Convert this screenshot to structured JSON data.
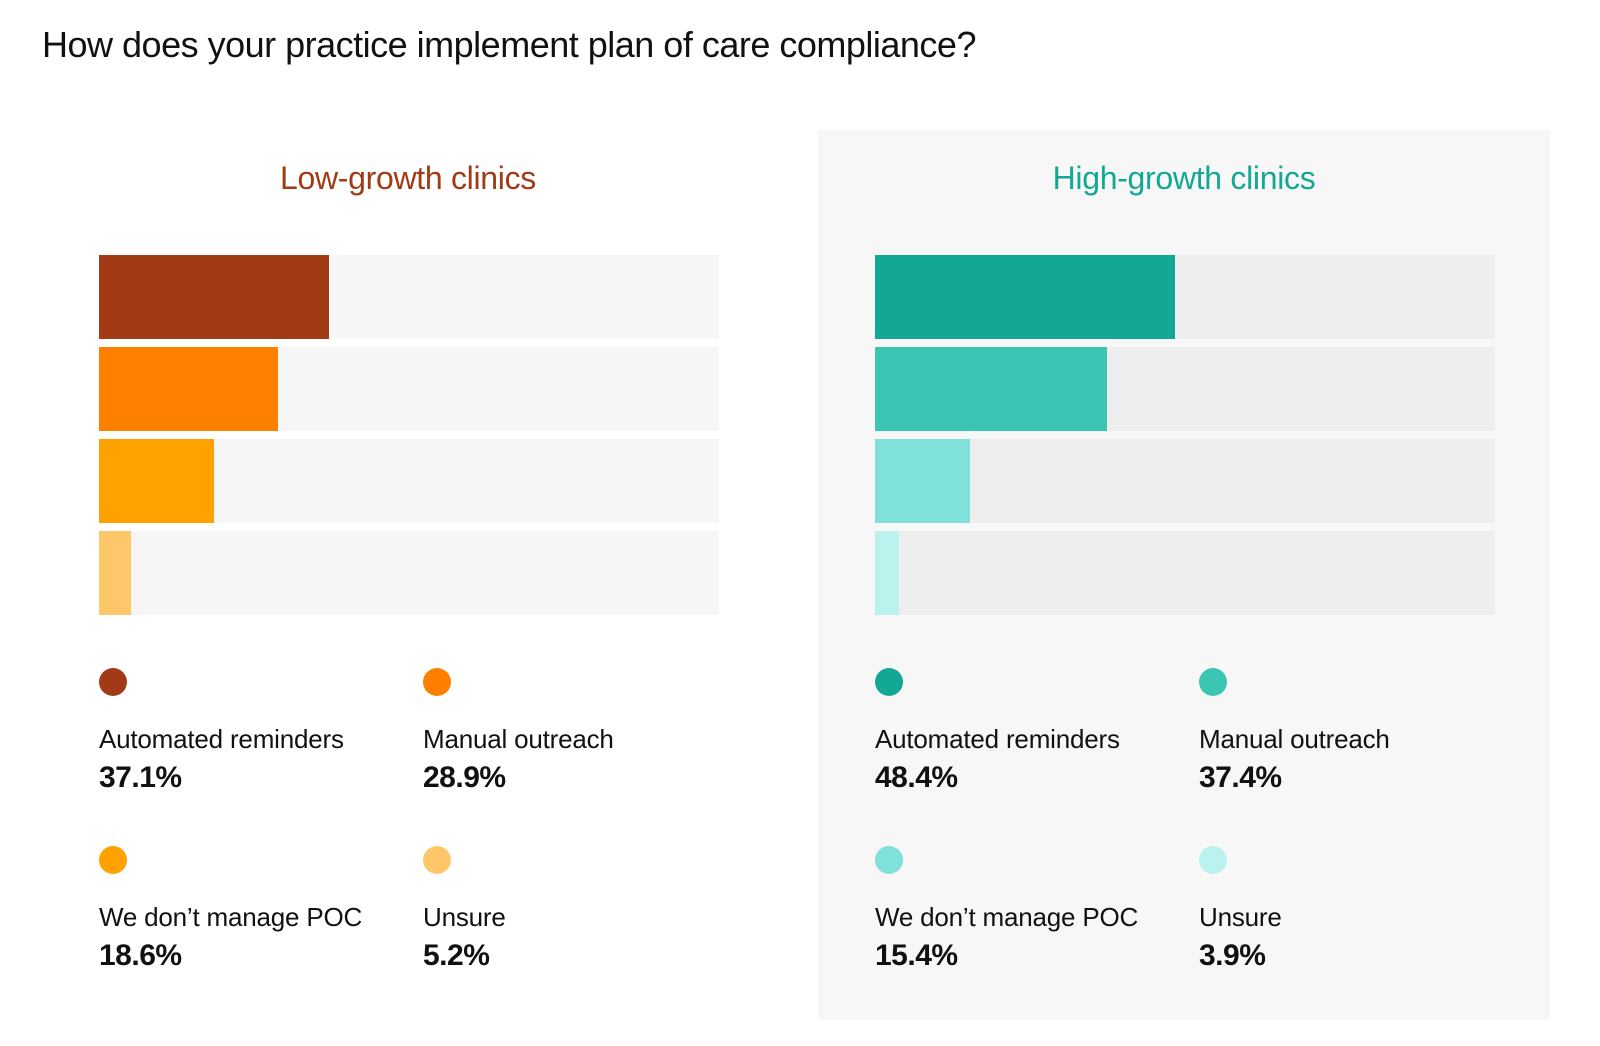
{
  "chart_data": {
    "type": "bar",
    "title": "How does your practice implement plan of care compliance?",
    "unit": "%",
    "xlim": [
      0,
      100
    ],
    "categories": [
      "Automated reminders",
      "Manual outreach",
      "We don’t manage POC",
      "Unsure"
    ],
    "panels": [
      {
        "name": "Low-growth clinics",
        "title_color": "#a23a16",
        "colors": [
          "#a23a16",
          "#ff7f00",
          "#ffa200",
          "#ffc76a"
        ],
        "values": [
          37.1,
          28.9,
          18.6,
          5.2
        ],
        "value_labels": [
          "37.1%",
          "28.9%",
          "18.6%",
          "5.2%"
        ]
      },
      {
        "name": "High-growth clinics",
        "title_color": "#13a893",
        "colors": [
          "#12a893",
          "#3cc5b3",
          "#80e0da",
          "#baf3ee"
        ],
        "values": [
          48.4,
          37.4,
          15.4,
          3.9
        ],
        "value_labels": [
          "48.4%",
          "37.4%",
          "15.4%",
          "3.9%"
        ]
      }
    ]
  }
}
